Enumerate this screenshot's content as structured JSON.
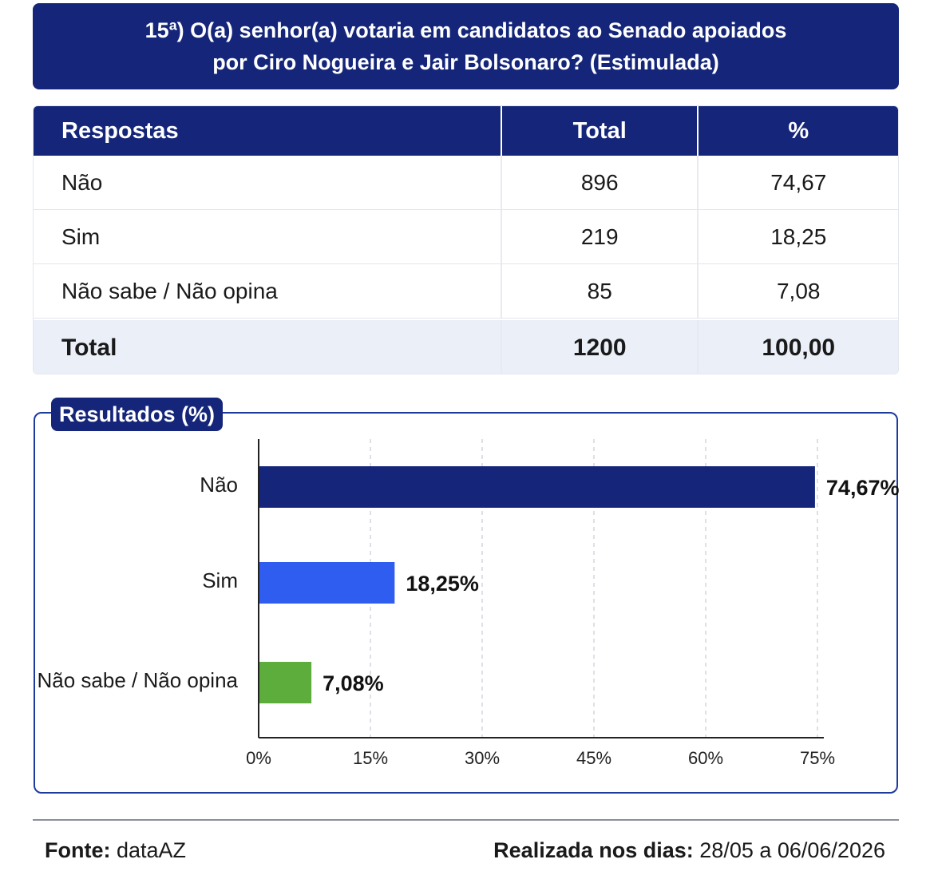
{
  "title": {
    "line1": "15ª) O(a) senhor(a) votaria em candidatos ao Senado apoiados",
    "line2": "por Ciro Nogueira e Jair Bolsonaro? (Estimulada)"
  },
  "table": {
    "headers": [
      "Respostas",
      "Total",
      "%"
    ],
    "rows": [
      {
        "resposta": "Não",
        "total": "896",
        "pct": "74,67"
      },
      {
        "resposta": "Sim",
        "total": "219",
        "pct": "18,25"
      },
      {
        "resposta": "Não sabe / Não opina",
        "total": "85",
        "pct": "7,08"
      }
    ],
    "total_row": {
      "label": "Total",
      "total": "1200",
      "pct": "100,00"
    }
  },
  "chart_data": {
    "type": "bar",
    "orientation": "horizontal",
    "title": "Resultados (%)",
    "categories": [
      "Não",
      "Sim",
      "Não sabe / Não opina"
    ],
    "values": [
      74.67,
      18.25,
      7.08
    ],
    "value_labels": [
      "74,67%",
      "18,25%",
      "7,08%"
    ],
    "colors": [
      "#15267a",
      "#2f5df0",
      "#5cad3c"
    ],
    "xlim": [
      0,
      75
    ],
    "xticks": [
      0,
      15,
      30,
      45,
      60,
      75
    ],
    "xtick_labels": [
      "0%",
      "15%",
      "30%",
      "45%",
      "60%",
      "75%"
    ],
    "grid": "vertical-dashed"
  },
  "footer": {
    "source_label": "Fonte:",
    "source_value": "dataAZ",
    "dates_label": "Realizada nos dias:",
    "dates_value": "28/05 a 06/06/2026"
  }
}
